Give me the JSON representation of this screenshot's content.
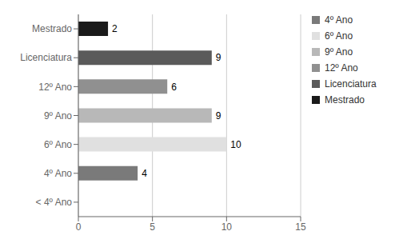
{
  "chart_data": {
    "type": "bar",
    "orientation": "horizontal",
    "categories": [
      "< 4º Ano",
      "4º Ano",
      "6º Ano",
      "9º Ano",
      "12º Ano",
      "Licenciatura",
      "Mestrado"
    ],
    "values": [
      0,
      4,
      10,
      9,
      6,
      9,
      2
    ],
    "colors": [
      "#d0d0d0",
      "#7a7a7a",
      "#e0e0e0",
      "#b8b8b8",
      "#909090",
      "#5a5a5a",
      "#1a1a1a"
    ],
    "xlim": [
      0,
      15
    ],
    "xticks": [
      0,
      5,
      10,
      15
    ],
    "grid": "x",
    "data_labels": true,
    "legend": "right",
    "legend_labels": [
      "4º Ano",
      "6º Ano",
      "9º Ano",
      "12º Ano",
      "Licenciatura",
      "Mestrado"
    ],
    "legend_colors": [
      "#7a7a7a",
      "#e0e0e0",
      "#b8b8b8",
      "#909090",
      "#5a5a5a",
      "#1a1a1a"
    ]
  }
}
